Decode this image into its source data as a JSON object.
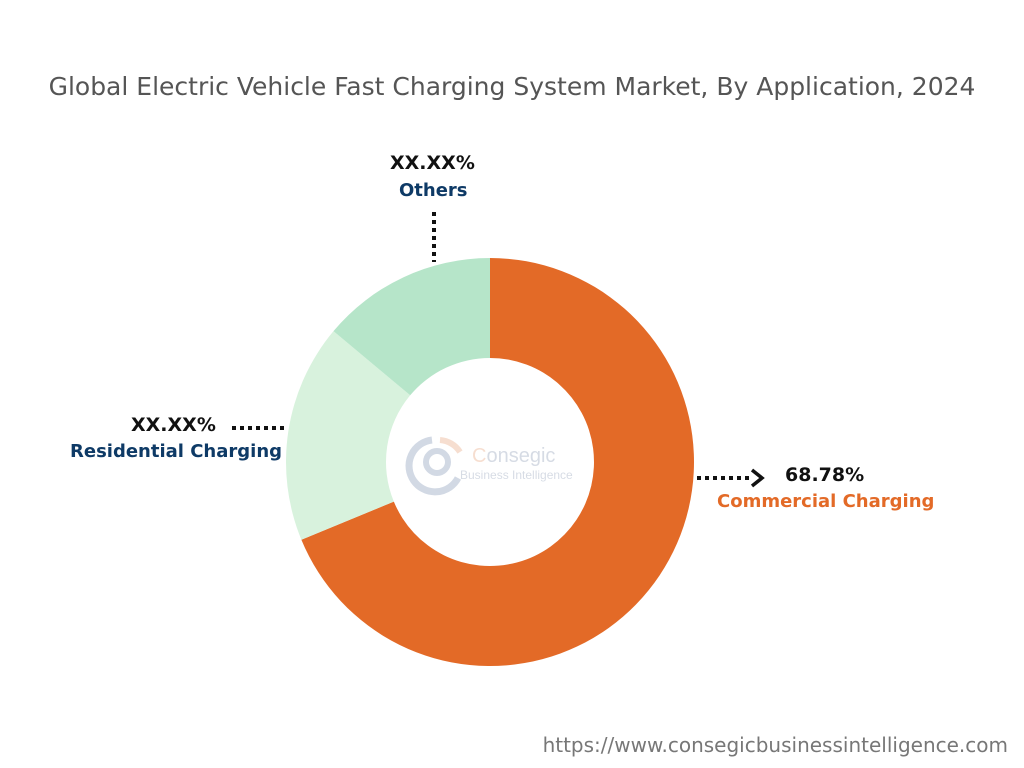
{
  "chart_data": {
    "type": "pie",
    "subtype": "donut",
    "title": "Global Electric Vehicle Fast Charging System Market, By Application, 2024",
    "slices": [
      {
        "label": "Commercial Charging",
        "value_label": "68.78%",
        "value": 68.78,
        "color": "#E36A27",
        "label_color": "#E36A27"
      },
      {
        "label": "Residential Charging",
        "value_label": "XX.XX%",
        "value": 17.3,
        "color": "#D8F2DD",
        "label_color": "#0E3A66"
      },
      {
        "label": "Others",
        "value_label": "XX.XX%",
        "value": 13.92,
        "color": "#B6E5C9",
        "label_color": "#0E3A66"
      }
    ]
  },
  "watermark": {
    "logo_text": "Consegic Business Intelligence"
  },
  "footer": {
    "url": "https://www.consegicbusinessintelligence.com"
  }
}
